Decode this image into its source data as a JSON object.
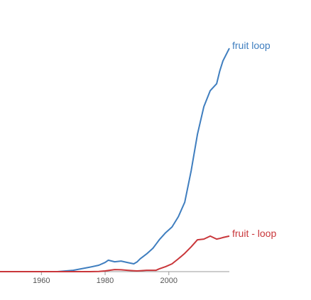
{
  "chart_data": {
    "type": "line",
    "x": [
      1947,
      1965,
      1970,
      1975,
      1978,
      1980,
      1981,
      1983,
      1985,
      1987,
      1989,
      1990,
      1991,
      1993,
      1995,
      1996,
      1997,
      1999,
      2001,
      2003,
      2005,
      2007,
      2009,
      2011,
      2013,
      2015,
      2016,
      2017,
      2019
    ],
    "series": [
      {
        "name": "fruit loop",
        "color": "#3f7ebf",
        "values": [
          0,
          0,
          0.6,
          1.9,
          2.8,
          4,
          5,
          4.3,
          4.6,
          4,
          3.4,
          4.2,
          5.6,
          7.7,
          10.2,
          12,
          13.9,
          17,
          19.5,
          24,
          30.3,
          44,
          60,
          72,
          79,
          82,
          87.6,
          92,
          97.5
        ]
      },
      {
        "name": "fruit - loop",
        "color": "#c9363a",
        "values": [
          0,
          0,
          0,
          0,
          0.1,
          0.3,
          0.5,
          0.9,
          0.8,
          0.6,
          0.4,
          0.3,
          0.4,
          0.6,
          0.6,
          0.6,
          1.2,
          2.2,
          3.4,
          5.6,
          8,
          10.8,
          13.9,
          14.2,
          15.5,
          14.2,
          14.5,
          14.9,
          15.5
        ]
      }
    ],
    "xlim": [
      1947,
      2019
    ],
    "ylim": [
      0,
      100
    ],
    "xticks": [
      1960,
      1980,
      2000
    ]
  }
}
